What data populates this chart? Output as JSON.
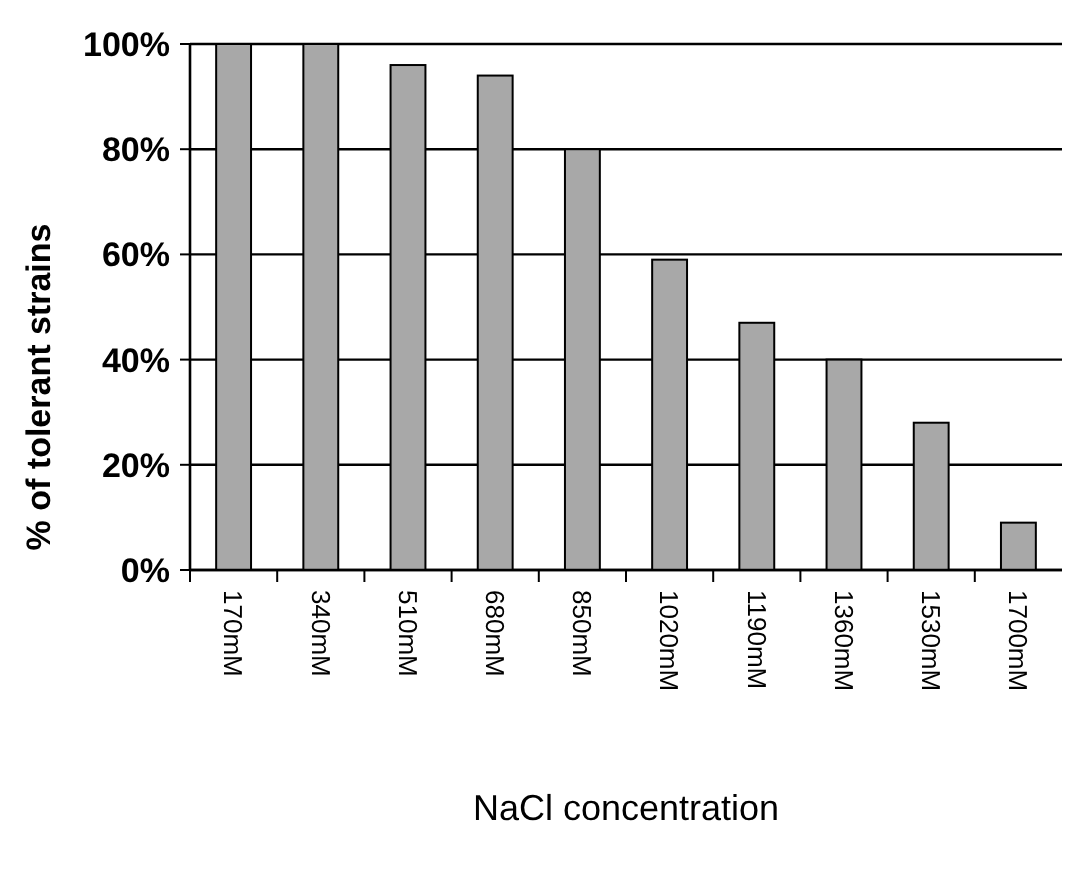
{
  "chart_data": {
    "type": "bar",
    "xlabel": "NaCl concentration",
    "ylabel": "% of tolerant strains",
    "categories": [
      "170mM",
      "340mM",
      "510mM",
      "680mM",
      "850mM",
      "1020mM",
      "1190mM",
      "1360mM",
      "1530mM",
      "1700mM"
    ],
    "values": [
      100,
      100,
      96,
      94,
      80,
      59,
      47,
      40,
      28,
      9
    ],
    "color": "#a8a8a8",
    "ylim": [
      0,
      100
    ],
    "yticks": [
      {
        "value": 0,
        "label": "0%"
      },
      {
        "value": 20,
        "label": "20%"
      },
      {
        "value": 40,
        "label": "40%"
      },
      {
        "value": 60,
        "label": "60%"
      },
      {
        "value": 80,
        "label": "80%"
      },
      {
        "value": 100,
        "label": "100%"
      }
    ],
    "grid": "y"
  }
}
